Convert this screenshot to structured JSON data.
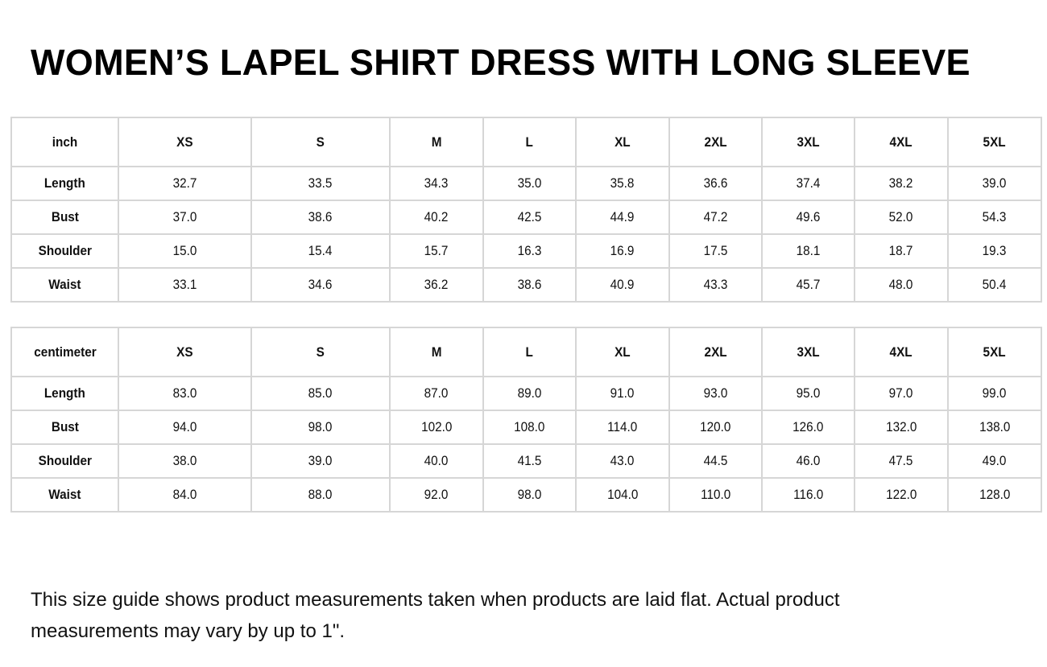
{
  "title": "WOMEN’S LAPEL SHIRT DRESS WITH LONG SLEEVE",
  "sizes": [
    "XS",
    "S",
    "M",
    "L",
    "XL",
    "2XL",
    "3XL",
    "4XL",
    "5XL"
  ],
  "tables": [
    {
      "unit": "inch",
      "rows": [
        {
          "label": "Length",
          "values": [
            "32.7",
            "33.5",
            "34.3",
            "35.0",
            "35.8",
            "36.6",
            "37.4",
            "38.2",
            "39.0"
          ]
        },
        {
          "label": "Bust",
          "values": [
            "37.0",
            "38.6",
            "40.2",
            "42.5",
            "44.9",
            "47.2",
            "49.6",
            "52.0",
            "54.3"
          ]
        },
        {
          "label": "Shoulder",
          "values": [
            "15.0",
            "15.4",
            "15.7",
            "16.3",
            "16.9",
            "17.5",
            "18.1",
            "18.7",
            "19.3"
          ]
        },
        {
          "label": "Waist",
          "values": [
            "33.1",
            "34.6",
            "36.2",
            "38.6",
            "40.9",
            "43.3",
            "45.7",
            "48.0",
            "50.4"
          ]
        }
      ]
    },
    {
      "unit": "centimeter",
      "rows": [
        {
          "label": "Length",
          "values": [
            "83.0",
            "85.0",
            "87.0",
            "89.0",
            "91.0",
            "93.0",
            "95.0",
            "97.0",
            "99.0"
          ]
        },
        {
          "label": "Bust",
          "values": [
            "94.0",
            "98.0",
            "102.0",
            "108.0",
            "114.0",
            "120.0",
            "126.0",
            "132.0",
            "138.0"
          ]
        },
        {
          "label": "Shoulder",
          "values": [
            "38.0",
            "39.0",
            "40.0",
            "41.5",
            "43.0",
            "44.5",
            "46.0",
            "47.5",
            "49.0"
          ]
        },
        {
          "label": "Waist",
          "values": [
            "84.0",
            "88.0",
            "92.0",
            "98.0",
            "104.0",
            "110.0",
            "116.0",
            "122.0",
            "128.0"
          ]
        }
      ]
    }
  ],
  "footer": "This size guide shows product measurements taken when products are laid flat. Actual product measurements may vary by up to 1\"."
}
